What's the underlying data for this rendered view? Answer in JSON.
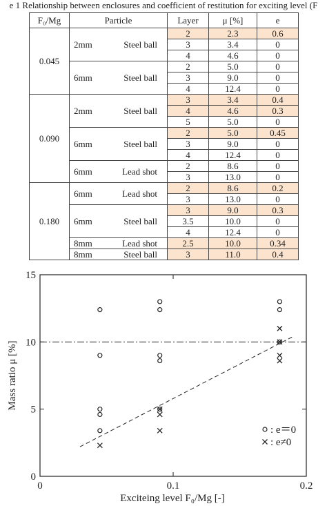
{
  "table": {
    "caption": "e 1 Relationship between enclosures and coefficient of restitution for exciting level (F",
    "header": [
      "F₀/Mg",
      "Particle",
      "Layer",
      "μ [%]",
      "e"
    ],
    "groups": [
      {
        "level": "0.045",
        "subgroups": [
          {
            "size": "2mm",
            "particle": "Steel ball",
            "rows": [
              {
                "layer": "2",
                "mu": "2.3",
                "e": "0.6",
                "highlight": true
              },
              {
                "layer": "3",
                "mu": "3.4",
                "e": "0",
                "highlight": false
              },
              {
                "layer": "4",
                "mu": "4.6",
                "e": "0",
                "highlight": false
              }
            ]
          },
          {
            "size": "6mm",
            "particle": "Steel ball",
            "rows": [
              {
                "layer": "2",
                "mu": "5.0",
                "e": "0",
                "highlight": false
              },
              {
                "layer": "3",
                "mu": "9.0",
                "e": "0",
                "highlight": false
              },
              {
                "layer": "4",
                "mu": "12.4",
                "e": "0",
                "highlight": false
              }
            ]
          }
        ]
      },
      {
        "level": "0.090",
        "subgroups": [
          {
            "size": "2mm",
            "particle": "Steel ball",
            "rows": [
              {
                "layer": "3",
                "mu": "3.4",
                "e": "0.4",
                "highlight": true
              },
              {
                "layer": "4",
                "mu": "4.6",
                "e": "0.3",
                "highlight": true
              },
              {
                "layer": "5",
                "mu": "5.0",
                "e": "0",
                "highlight": false
              }
            ]
          },
          {
            "size": "6mm",
            "particle": "Steel ball",
            "rows": [
              {
                "layer": "2",
                "mu": "5.0",
                "e": "0.45",
                "highlight": true
              },
              {
                "layer": "3",
                "mu": "9.0",
                "e": "0",
                "highlight": false
              },
              {
                "layer": "4",
                "mu": "12.4",
                "e": "0",
                "highlight": false
              }
            ]
          },
          {
            "size": "6mm",
            "particle": "Lead shot",
            "rows": [
              {
                "layer": "2",
                "mu": "8.6",
                "e": "0",
                "highlight": false
              },
              {
                "layer": "3",
                "mu": "13.0",
                "e": "0",
                "highlight": false
              }
            ]
          }
        ]
      },
      {
        "level": "0.180",
        "subgroups": [
          {
            "size": "6mm",
            "particle": "Lead shot",
            "rows": [
              {
                "layer": "2",
                "mu": "8.6",
                "e": "0.2",
                "highlight": true
              },
              {
                "layer": "3",
                "mu": "13.0",
                "e": "0",
                "highlight": false
              }
            ]
          },
          {
            "size": "6mm",
            "particle": "Steel ball",
            "rows": [
              {
                "layer": "3",
                "mu": "9.0",
                "e": "0.3",
                "highlight": true
              },
              {
                "layer": "3.5",
                "mu": "10.0",
                "e": "0",
                "highlight": false
              },
              {
                "layer": "4",
                "mu": "12.4",
                "e": "0",
                "highlight": false
              }
            ]
          },
          {
            "size": "8mm",
            "particle": "Lead shot",
            "rows": [
              {
                "layer": "2.5",
                "mu": "10.0",
                "e": "0.34",
                "highlight": true
              }
            ]
          },
          {
            "size": "8mm",
            "particle": "Steel ball",
            "rows": [
              {
                "layer": "3",
                "mu": "11.0",
                "e": "0.4",
                "highlight": true
              }
            ]
          }
        ]
      }
    ]
  },
  "chart_data": {
    "type": "scatter",
    "x_label": "Exciteing level  F₀/Mg [-]",
    "y_label": "Mass ratio  μ [%]",
    "xlim": [
      0,
      0.2
    ],
    "xticks": [
      0,
      0.1,
      0.2
    ],
    "ylim": [
      0,
      15
    ],
    "yticks": [
      0,
      5,
      10,
      15
    ],
    "reference_line": 10,
    "trend_line": {
      "x": [
        0.03,
        0.19
      ],
      "y": [
        2.2,
        10.4
      ]
    },
    "series": [
      {
        "name": ": e＝0",
        "marker": "circle",
        "color": "#222222",
        "x": [
          0.045,
          0.045,
          0.045,
          0.045,
          0.045,
          0.09,
          0.09,
          0.09,
          0.09,
          0.09,
          0.18,
          0.18,
          0.18
        ],
        "values": [
          3.4,
          4.6,
          5.0,
          9.0,
          12.4,
          5.0,
          8.6,
          9.0,
          12.4,
          13.0,
          10.0,
          12.4,
          13.0
        ]
      },
      {
        "name": ": e≠0",
        "marker": "cross",
        "color": "#222222",
        "x": [
          0.045,
          0.09,
          0.09,
          0.09,
          0.18,
          0.18,
          0.18,
          0.18
        ],
        "values": [
          2.3,
          3.4,
          4.6,
          5.0,
          8.6,
          9.0,
          10.0,
          11.0
        ]
      }
    ]
  }
}
